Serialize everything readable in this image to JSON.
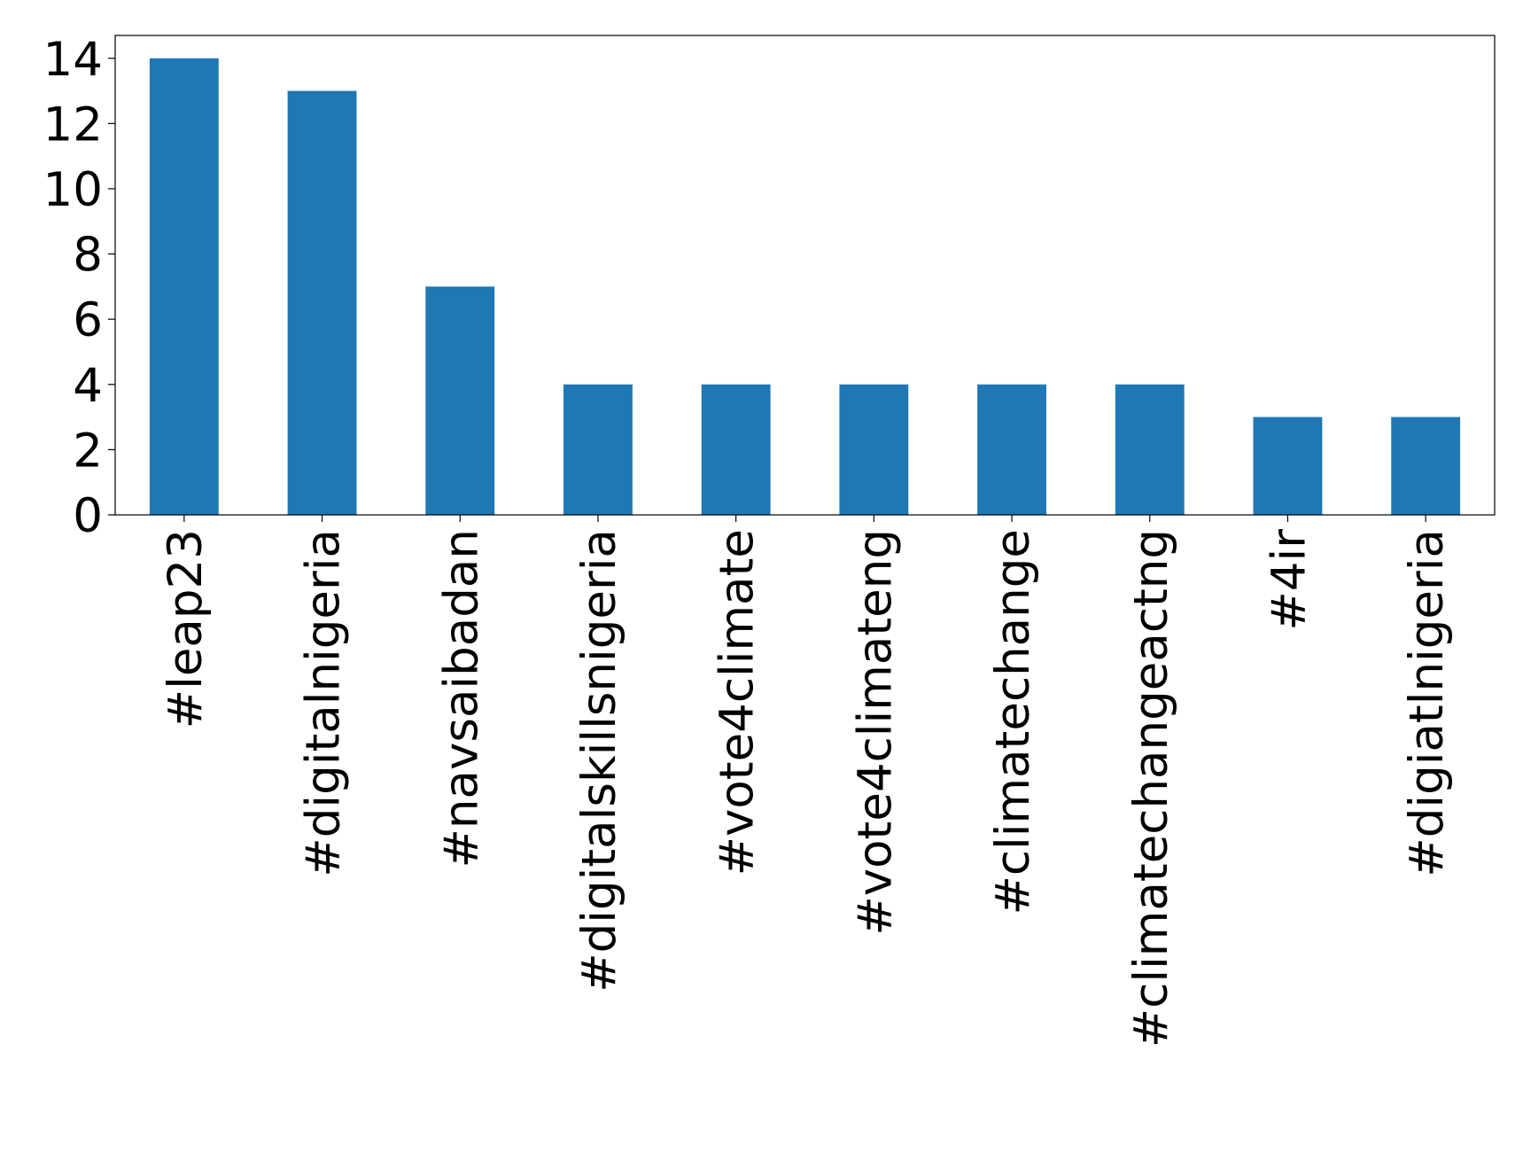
{
  "chart_data": {
    "type": "bar",
    "categories": [
      "#leap23",
      "#digitalnigeria",
      "#navsaibadan",
      "#digitalskillsnigeria",
      "#vote4climate",
      "#vote4climateng",
      "#climatechange",
      "#climatechangeactng",
      "#4ir",
      "#digiatlnigeria"
    ],
    "values": [
      14,
      13,
      7,
      4,
      4,
      4,
      4,
      4,
      3,
      3
    ],
    "color": "#1f77b4",
    "ylim": [
      0,
      14.7
    ],
    "yticks": [
      0,
      2,
      4,
      6,
      8,
      10,
      12,
      14
    ],
    "grid": false
  }
}
